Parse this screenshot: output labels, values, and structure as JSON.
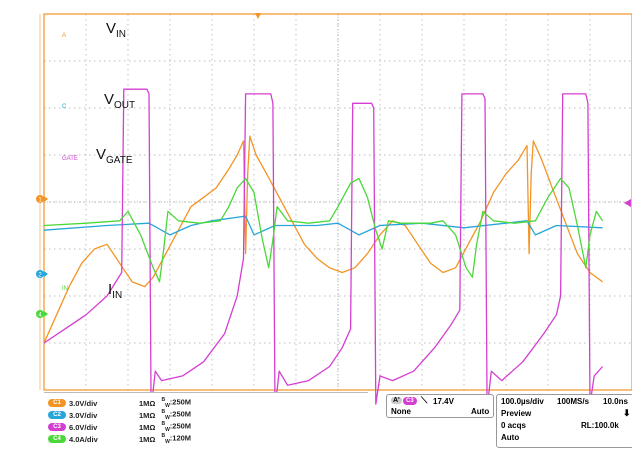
{
  "colors": {
    "ch_a": "#F39424",
    "ch_c": "#27A6D9",
    "ch_gate": "#D43FD2",
    "ch_in": "#4CD83A",
    "grid": "#a8a8a8",
    "frame": "#F39424"
  },
  "chart_data": {
    "type": "line",
    "grid": true,
    "x_time_per_div": "100.0µs/div",
    "series": [
      {
        "name": "A",
        "label": "V",
        "sub": "IN",
        "ch": "1",
        "points": [
          [
            0,
            1.0
          ],
          [
            0.3,
            1.6
          ],
          [
            0.6,
            2.2
          ],
          [
            0.9,
            2.7
          ],
          [
            1.2,
            3.0
          ],
          [
            1.5,
            3.1
          ],
          [
            1.8,
            2.7
          ],
          [
            2.1,
            2.3
          ],
          [
            2.4,
            2.2
          ],
          [
            2.6,
            2.4
          ],
          [
            2.9,
            2.9
          ],
          [
            3.2,
            3.4
          ],
          [
            3.5,
            3.9
          ],
          [
            3.8,
            4.1
          ],
          [
            4.1,
            4.3
          ],
          [
            4.4,
            4.7
          ],
          [
            4.6,
            5.0
          ],
          [
            4.75,
            5.3
          ],
          [
            4.8,
            2.9
          ],
          [
            4.85,
            4.6
          ],
          [
            4.9,
            5.4
          ],
          [
            5.05,
            5.0
          ],
          [
            5.3,
            4.6
          ],
          [
            5.6,
            4.1
          ],
          [
            5.9,
            3.6
          ],
          [
            6.2,
            3.1
          ],
          [
            6.5,
            2.8
          ],
          [
            6.8,
            2.6
          ],
          [
            7.1,
            2.5
          ],
          [
            7.4,
            2.6
          ],
          [
            7.7,
            2.9
          ],
          [
            8.0,
            3.3
          ],
          [
            8.3,
            3.6
          ],
          [
            8.6,
            3.5
          ],
          [
            8.9,
            3.1
          ],
          [
            9.2,
            2.7
          ],
          [
            9.5,
            2.5
          ],
          [
            9.8,
            2.6
          ],
          [
            10.1,
            3.1
          ],
          [
            10.4,
            3.6
          ],
          [
            10.7,
            4.2
          ],
          [
            11.0,
            4.6
          ],
          [
            11.3,
            4.9
          ],
          [
            11.5,
            5.2
          ],
          [
            11.55,
            2.9
          ],
          [
            11.6,
            4.6
          ],
          [
            11.65,
            5.3
          ],
          [
            11.85,
            4.9
          ],
          [
            12.1,
            4.3
          ],
          [
            12.4,
            3.6
          ],
          [
            12.7,
            2.9
          ],
          [
            13.0,
            2.5
          ],
          [
            13.3,
            2.3
          ]
        ]
      },
      {
        "name": "C",
        "label": "V",
        "sub": "OUT",
        "ch": "2",
        "points": [
          [
            0,
            3.4
          ],
          [
            1.5,
            3.5
          ],
          [
            2.5,
            3.55
          ],
          [
            3.0,
            3.3
          ],
          [
            3.5,
            3.5
          ],
          [
            4.0,
            3.6
          ],
          [
            4.8,
            3.7
          ],
          [
            5.0,
            3.3
          ],
          [
            5.5,
            3.5
          ],
          [
            6.5,
            3.5
          ],
          [
            7.0,
            3.55
          ],
          [
            7.5,
            3.3
          ],
          [
            8.0,
            3.5
          ],
          [
            9.0,
            3.55
          ],
          [
            10.0,
            3.45
          ],
          [
            11.5,
            3.6
          ],
          [
            11.7,
            3.3
          ],
          [
            12.2,
            3.5
          ],
          [
            13.3,
            3.45
          ]
        ]
      },
      {
        "name": "GATE",
        "label": "V",
        "sub": "GATE",
        "ch": "3",
        "points": [
          [
            0,
            1.0
          ],
          [
            0.5,
            1.3
          ],
          [
            1.0,
            1.6
          ],
          [
            1.5,
            2.0
          ],
          [
            1.85,
            2.5
          ],
          [
            1.9,
            6.4
          ],
          [
            2.45,
            6.4
          ],
          [
            2.5,
            6.3
          ],
          [
            2.55,
            -0.4
          ],
          [
            2.65,
            0.4
          ],
          [
            2.8,
            0.2
          ],
          [
            3.3,
            0.3
          ],
          [
            3.8,
            0.6
          ],
          [
            4.3,
            1.2
          ],
          [
            4.6,
            2.0
          ],
          [
            4.75,
            2.8
          ],
          [
            4.8,
            6.3
          ],
          [
            5.4,
            6.3
          ],
          [
            5.45,
            6.1
          ],
          [
            5.5,
            -0.4
          ],
          [
            5.6,
            0.4
          ],
          [
            5.8,
            0.1
          ],
          [
            6.3,
            0.2
          ],
          [
            6.8,
            0.5
          ],
          [
            7.1,
            0.9
          ],
          [
            7.3,
            1.3
          ],
          [
            7.35,
            6.1
          ],
          [
            7.8,
            6.1
          ],
          [
            7.85,
            6.0
          ],
          [
            7.9,
            -0.3
          ],
          [
            8.0,
            0.3
          ],
          [
            8.3,
            0.2
          ],
          [
            8.8,
            0.4
          ],
          [
            9.3,
            0.9
          ],
          [
            9.7,
            1.4
          ],
          [
            9.9,
            1.7
          ],
          [
            9.95,
            6.3
          ],
          [
            10.45,
            6.3
          ],
          [
            10.5,
            6.2
          ],
          [
            10.55,
            -0.4
          ],
          [
            10.65,
            0.4
          ],
          [
            10.9,
            0.2
          ],
          [
            11.4,
            0.6
          ],
          [
            11.9,
            1.2
          ],
          [
            12.2,
            1.6
          ],
          [
            12.3,
            2.0
          ],
          [
            12.35,
            6.3
          ],
          [
            12.9,
            6.3
          ],
          [
            12.95,
            6.1
          ],
          [
            13.0,
            -0.3
          ],
          [
            13.1,
            0.3
          ],
          [
            13.3,
            0.5
          ]
        ]
      },
      {
        "name": "IN",
        "label": "I",
        "sub": "IN",
        "ch": "4",
        "points": [
          [
            0,
            3.5
          ],
          [
            1.0,
            3.55
          ],
          [
            1.8,
            3.6
          ],
          [
            2.0,
            3.8
          ],
          [
            2.3,
            3.3
          ],
          [
            2.6,
            2.6
          ],
          [
            2.75,
            2.3
          ],
          [
            2.85,
            3.0
          ],
          [
            2.95,
            3.8
          ],
          [
            3.2,
            3.6
          ],
          [
            3.7,
            3.55
          ],
          [
            4.2,
            3.6
          ],
          [
            4.4,
            3.9
          ],
          [
            4.6,
            4.3
          ],
          [
            4.8,
            4.5
          ],
          [
            5.0,
            4.2
          ],
          [
            5.2,
            3.2
          ],
          [
            5.35,
            2.6
          ],
          [
            5.45,
            3.2
          ],
          [
            5.55,
            3.9
          ],
          [
            5.8,
            3.6
          ],
          [
            6.3,
            3.55
          ],
          [
            6.8,
            3.6
          ],
          [
            7.0,
            3.9
          ],
          [
            7.3,
            4.4
          ],
          [
            7.5,
            4.5
          ],
          [
            7.7,
            4.1
          ],
          [
            7.9,
            3.4
          ],
          [
            8.05,
            3.0
          ],
          [
            8.2,
            3.6
          ],
          [
            8.5,
            3.55
          ],
          [
            9.2,
            3.55
          ],
          [
            9.5,
            3.6
          ],
          [
            9.8,
            3.3
          ],
          [
            10.05,
            2.6
          ],
          [
            10.2,
            2.4
          ],
          [
            10.3,
            3.1
          ],
          [
            10.45,
            3.8
          ],
          [
            10.7,
            3.6
          ],
          [
            11.2,
            3.55
          ],
          [
            11.7,
            3.6
          ],
          [
            12.0,
            4.1
          ],
          [
            12.3,
            4.5
          ],
          [
            12.5,
            4.3
          ],
          [
            12.7,
            3.5
          ],
          [
            12.9,
            2.6
          ],
          [
            13.0,
            3.3
          ],
          [
            13.15,
            3.8
          ],
          [
            13.3,
            3.6
          ]
        ]
      }
    ]
  },
  "trace_labels": {
    "a": "A",
    "c": "C",
    "gate": "GATE",
    "in": "IN"
  },
  "ground_markers": [
    "1",
    "2",
    "4"
  ],
  "channels": [
    {
      "ch": "C1",
      "vdiv": "3.0V/div",
      "imp": "1MΩ",
      "bw": "250M"
    },
    {
      "ch": "C2",
      "vdiv": "3.0V/div",
      "imp": "1MΩ",
      "bw": "250M"
    },
    {
      "ch": "C3",
      "vdiv": "6.0V/div",
      "imp": "1MΩ",
      "bw": "250M"
    },
    {
      "ch": "C4",
      "vdiv": "4.0A/div",
      "imp": "1MΩ",
      "bw": "120M"
    }
  ],
  "trigger": {
    "label": "A'",
    "ch": "C3",
    "level": "17.4V",
    "mode_left": "None",
    "mode_right": "Auto"
  },
  "timebase": {
    "div": "100.0µs/div",
    "rate": "100MS/s",
    "res": "10.0ns",
    "state": "Preview",
    "acqs": "0 acqs",
    "rl": "RL:100.0k",
    "mode": "Auto"
  }
}
